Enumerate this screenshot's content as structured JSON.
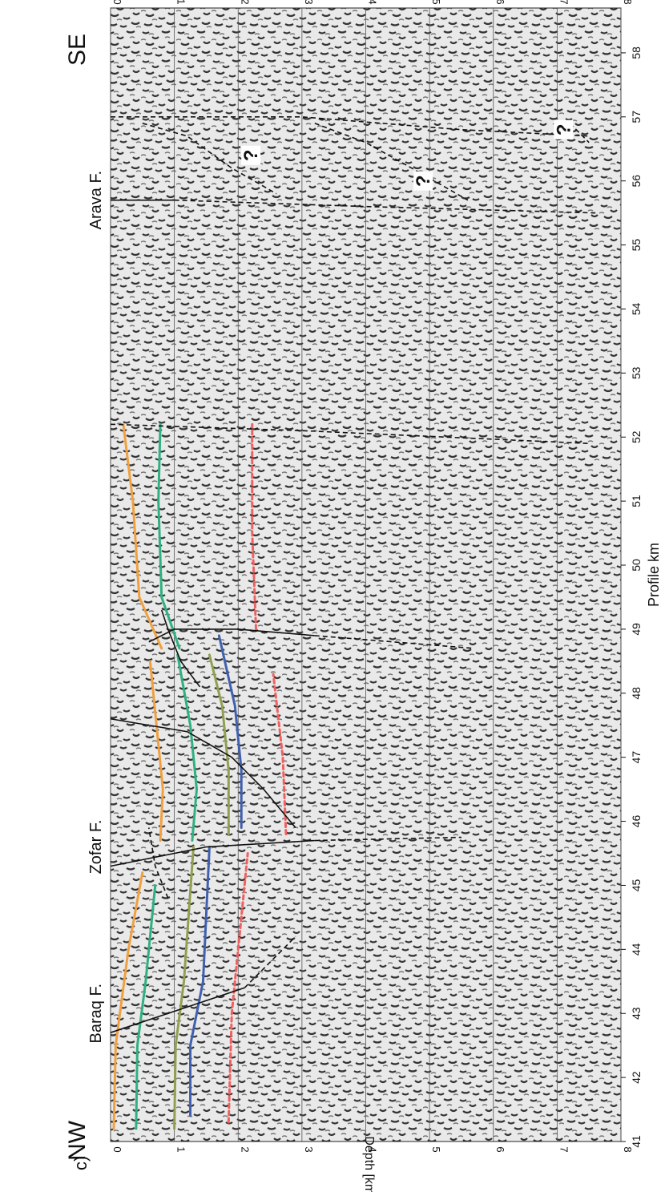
{
  "figure": {
    "panel_label": "c)",
    "direction_start": "NW",
    "direction_end": "SE",
    "x_axis_title": "Profile km",
    "y_axis_title": "Depth [km]",
    "faults": [
      {
        "label": "Baraq F.",
        "km": 43.0
      },
      {
        "label": "Zofar F.",
        "km": 45.6
      },
      {
        "label": "Arava F.",
        "km": 55.7
      }
    ],
    "question_marks": [
      {
        "text": "?",
        "km": 56.4,
        "depth": 2.2
      },
      {
        "text": "?",
        "km": 56.0,
        "depth": 4.9
      },
      {
        "text": "?",
        "km": 56.8,
        "depth": 7.1
      }
    ]
  },
  "chart_data": {
    "type": "seismic-section",
    "x_range": [
      41,
      58.7
    ],
    "y_range": [
      0,
      8
    ],
    "x_ticks": [
      "41",
      "42",
      "43",
      "44",
      "45",
      "46",
      "47",
      "48",
      "49",
      "50",
      "51",
      "52",
      "53",
      "54",
      "55",
      "56",
      "57",
      "58"
    ],
    "y_ticks": [
      "0",
      "1",
      "2",
      "3",
      "4",
      "5",
      "6",
      "7",
      "8"
    ],
    "y_ticks_right": [
      "0",
      "1",
      "2",
      "3",
      "4",
      "5",
      "6",
      "7",
      "8"
    ],
    "grid": true,
    "horizons": [
      {
        "color": "#f0a040",
        "style": "solid",
        "x": [
          41.2,
          42.5,
          44.0,
          45.2
        ],
        "y": [
          0.05,
          0.08,
          0.28,
          0.5
        ]
      },
      {
        "color": "#f0a040",
        "style": "solid",
        "x": [
          45.7,
          46.5,
          47.5,
          48.5
        ],
        "y": [
          0.78,
          0.82,
          0.72,
          0.62
        ]
      },
      {
        "color": "#f0a040",
        "style": "solid",
        "x": [
          48.7,
          49.5,
          51.0,
          52.2
        ],
        "y": [
          0.8,
          0.45,
          0.35,
          0.2
        ]
      },
      {
        "color": "#30b080",
        "style": "solid",
        "x": [
          41.2,
          42.5,
          43.5,
          45.0
        ],
        "y": [
          0.4,
          0.42,
          0.55,
          0.7
        ]
      },
      {
        "color": "#30b080",
        "style": "solid",
        "x": [
          45.7,
          46.5,
          47.5,
          48.6
        ],
        "y": [
          1.28,
          1.35,
          1.25,
          1.05
        ]
      },
      {
        "color": "#30b080",
        "style": "solid",
        "x": [
          48.7,
          49.5,
          51.0,
          52.2
        ],
        "y": [
          1.08,
          0.8,
          0.75,
          0.78
        ]
      },
      {
        "color": "#90a050",
        "style": "solid",
        "x": [
          41.2,
          42.5,
          43.5,
          45.6
        ],
        "y": [
          1.0,
          1.02,
          1.15,
          1.3
        ]
      },
      {
        "color": "#90a050",
        "style": "solid",
        "x": [
          45.8,
          46.8,
          47.8,
          48.6
        ],
        "y": [
          1.85,
          1.85,
          1.75,
          1.55
        ]
      },
      {
        "color": "#4060b0",
        "style": "solid",
        "x": [
          41.4,
          42.5,
          43.5,
          45.6
        ],
        "y": [
          1.25,
          1.25,
          1.45,
          1.55
        ]
      },
      {
        "color": "#4060b0",
        "style": "solid",
        "x": [
          45.9,
          46.8,
          47.8,
          48.9
        ],
        "y": [
          2.05,
          2.05,
          1.95,
          1.7
        ]
      },
      {
        "color": "#f06060",
        "style": "dashed",
        "x": [
          41.3,
          43.0,
          45.5
        ],
        "y": [
          1.85,
          1.9,
          2.15
        ]
      },
      {
        "color": "#f06060",
        "style": "dashed",
        "x": [
          45.8,
          47.0,
          48.3
        ],
        "y": [
          2.75,
          2.7,
          2.55
        ]
      },
      {
        "color": "#f06060",
        "style": "dashed",
        "x": [
          49.0,
          50.5,
          52.2
        ],
        "y": [
          2.28,
          2.22,
          2.22
        ]
      }
    ],
    "faults": [
      {
        "style": "solid",
        "x": [
          42.7,
          43.1,
          43.4
        ],
        "y": [
          0.0,
          1.2,
          2.1
        ]
      },
      {
        "style": "dashed",
        "x": [
          43.4,
          43.8,
          44.2
        ],
        "y": [
          2.1,
          2.5,
          2.9
        ]
      },
      {
        "style": "solid",
        "x": [
          45.3,
          45.6,
          45.7
        ],
        "y": [
          0.0,
          1.5,
          3.2
        ]
      },
      {
        "style": "dashed",
        "x": [
          45.7,
          45.75
        ],
        "y": [
          3.2,
          5.5
        ]
      },
      {
        "style": "dashed",
        "x": [
          44.8,
          45.3,
          45.9
        ],
        "y": [
          0.9,
          0.7,
          0.6
        ]
      },
      {
        "style": "solid",
        "x": [
          47.6,
          47.4,
          47.0,
          46.5,
          45.9
        ],
        "y": [
          0.0,
          1.2,
          1.9,
          2.4,
          2.9
        ]
      },
      {
        "style": "solid",
        "x": [
          48.1,
          48.5,
          49.0,
          49.3
        ],
        "y": [
          1.4,
          1.1,
          0.9,
          0.8
        ]
      },
      {
        "style": "solid",
        "x": [
          48.8,
          49.0,
          49.0,
          48.9
        ],
        "y": [
          0.6,
          1.0,
          2.0,
          3.2
        ]
      },
      {
        "style": "dashed",
        "x": [
          48.9,
          48.7
        ],
        "y": [
          3.2,
          5.7
        ]
      },
      {
        "style": "dashed",
        "x": [
          52.2,
          52.1,
          51.9
        ],
        "y": [
          0.0,
          3.0,
          7.5
        ]
      },
      {
        "style": "solid",
        "x": [
          55.7,
          55.7
        ],
        "y": [
          0.0,
          1.0
        ]
      },
      {
        "style": "dashed",
        "x": [
          55.7,
          55.6,
          55.5
        ],
        "y": [
          1.0,
          4.0,
          7.6
        ]
      },
      {
        "style": "dashed",
        "x": [
          57.0,
          57.0,
          56.8,
          56.7
        ],
        "y": [
          0.0,
          3.0,
          5.5,
          7.5
        ]
      },
      {
        "style": "dashed",
        "x": [
          56.9,
          56.7,
          56.2,
          55.8
        ],
        "y": [
          0.5,
          1.2,
          1.9,
          2.6
        ]
      },
      {
        "style": "dashed",
        "x": [
          56.9,
          56.6,
          56.1,
          55.7
        ],
        "y": [
          3.2,
          4.0,
          4.9,
          5.6
        ]
      },
      {
        "style": "dashed",
        "x": [
          56.9,
          56.6
        ],
        "y": [
          7.2,
          7.5
        ]
      }
    ]
  }
}
